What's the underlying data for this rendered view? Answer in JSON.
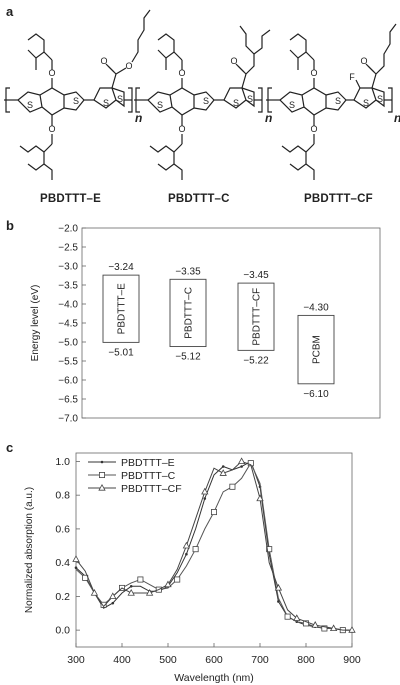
{
  "panels": {
    "a": "a",
    "b": "b",
    "c": "c"
  },
  "molecules": [
    {
      "name": "PBDTTT–E",
      "side_atom": "O"
    },
    {
      "name": "PBDTTT–C"
    },
    {
      "name": "PBDTTT–CF",
      "side_atom": "F"
    }
  ],
  "repeat_label": "n",
  "structure_atoms": {
    "O": "O",
    "S": "S",
    "F": "F"
  },
  "chart_data": [
    {
      "type": "bar",
      "ylabel": "Energy level (eV)",
      "ylim": [
        -7.0,
        -2.0
      ],
      "yticks": [
        "−2.0",
        "−2.5",
        "−3.0",
        "−3.5",
        "−4.0",
        "−4.5",
        "−5.0",
        "−5.5",
        "−6.0",
        "−6.5",
        "−7.0"
      ],
      "grid": false,
      "categories": [
        "PBDTTT–E",
        "PBDTTT–C",
        "PBDTTT–CF",
        "PCBM"
      ],
      "lumo": [
        -3.24,
        -3.35,
        -3.45,
        -4.3
      ],
      "homo": [
        -5.01,
        -5.12,
        -5.22,
        -6.1
      ],
      "lumo_labels": [
        "−3.24",
        "−3.35",
        "−3.45",
        "−4.30"
      ],
      "homo_labels": [
        "−5.01",
        "−5.12",
        "−5.22",
        "−6.10"
      ]
    },
    {
      "type": "line",
      "xlabel": "Wavelength (nm)",
      "ylabel": "Normalized absorption (a.u.)",
      "xlim": [
        300,
        900
      ],
      "ylim": [
        -0.1,
        1.05
      ],
      "xticks": [
        "300",
        "400",
        "500",
        "600",
        "700",
        "800",
        "900"
      ],
      "yticks": [
        "0.0",
        "0.2",
        "0.4",
        "0.6",
        "0.8",
        "1.0"
      ],
      "grid": false,
      "legend": "top-left",
      "series": [
        {
          "name": "PBDTTT–E",
          "marker": "dot",
          "x": [
            300,
            320,
            340,
            360,
            380,
            400,
            420,
            440,
            460,
            480,
            500,
            520,
            540,
            560,
            580,
            600,
            620,
            640,
            660,
            680,
            700,
            720,
            740,
            760,
            780,
            800,
            820,
            840,
            860,
            880,
            900
          ],
          "values": [
            0.37,
            0.32,
            0.22,
            0.13,
            0.16,
            0.22,
            0.26,
            0.26,
            0.23,
            0.23,
            0.26,
            0.34,
            0.45,
            0.6,
            0.78,
            0.92,
            0.97,
            0.95,
            0.97,
            1.0,
            0.85,
            0.45,
            0.17,
            0.08,
            0.05,
            0.03,
            0.02,
            0.01,
            0.01,
            0.0,
            0.0
          ]
        },
        {
          "name": "PBDTTT–C",
          "marker": "square",
          "x": [
            300,
            320,
            340,
            360,
            380,
            400,
            420,
            440,
            460,
            480,
            500,
            520,
            540,
            560,
            580,
            600,
            620,
            640,
            660,
            680,
            700,
            720,
            740,
            760,
            780,
            800,
            820,
            840,
            860,
            880,
            900
          ],
          "values": [
            0.36,
            0.31,
            0.22,
            0.15,
            0.2,
            0.25,
            0.28,
            0.3,
            0.27,
            0.24,
            0.25,
            0.3,
            0.38,
            0.48,
            0.6,
            0.7,
            0.82,
            0.85,
            0.9,
            0.99,
            0.87,
            0.48,
            0.19,
            0.08,
            0.05,
            0.04,
            0.02,
            0.01,
            0.01,
            0.0,
            0.0
          ]
        },
        {
          "name": "PBDTTT–CF",
          "marker": "triangle",
          "x": [
            300,
            320,
            340,
            360,
            380,
            400,
            420,
            440,
            460,
            480,
            500,
            520,
            540,
            560,
            580,
            600,
            620,
            640,
            660,
            680,
            700,
            720,
            740,
            760,
            780,
            800,
            820,
            840,
            860,
            880,
            900
          ],
          "values": [
            0.42,
            0.35,
            0.22,
            0.14,
            0.2,
            0.25,
            0.22,
            0.22,
            0.22,
            0.24,
            0.27,
            0.36,
            0.5,
            0.66,
            0.82,
            0.96,
            0.93,
            0.95,
            1.0,
            0.98,
            0.78,
            0.4,
            0.25,
            0.12,
            0.07,
            0.05,
            0.03,
            0.02,
            0.01,
            0.0,
            0.0
          ]
        }
      ]
    }
  ]
}
